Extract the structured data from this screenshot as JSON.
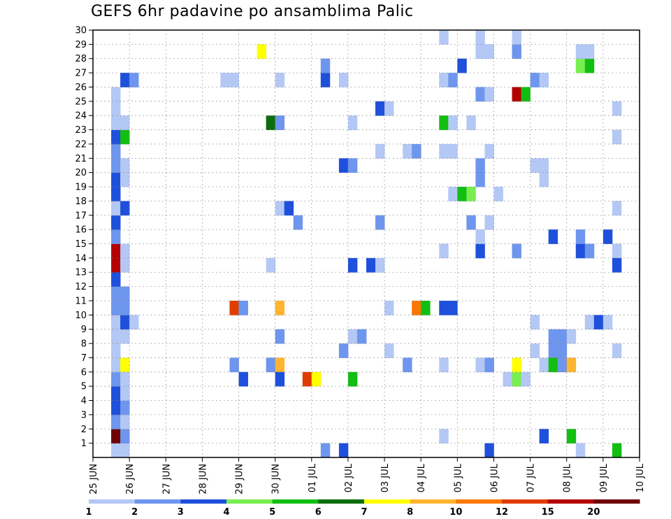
{
  "chart_data": {
    "type": "heatmap",
    "title": "GEFS 6hr padavine po ansamblima Palic",
    "xlabel": "",
    "ylabel": "",
    "x_ticks": [
      "25 JUN",
      "26 JUN",
      "27 JUN",
      "28 JUN",
      "29 JUN",
      "30 JUN",
      "01 JUL",
      "02 JUL",
      "03 JUL",
      "04 JUL",
      "05 JUL",
      "06 JUL",
      "07 JUL",
      "08 JUL",
      "09 JUL",
      "10 JUL"
    ],
    "xlim": [
      0,
      60
    ],
    "x_units": "6-hour steps from 25 JUN 00Z",
    "y_ticks": [
      "1",
      "2",
      "3",
      "4",
      "5",
      "6",
      "7",
      "8",
      "9",
      "10",
      "11",
      "12",
      "13",
      "14",
      "15",
      "16",
      "17",
      "18",
      "19",
      "20",
      "21",
      "22",
      "23",
      "24",
      "25",
      "26",
      "27",
      "28",
      "29",
      "30"
    ],
    "ylim": [
      0,
      30
    ],
    "grid": true,
    "colorbar": {
      "levels": [
        1,
        2,
        3,
        4,
        5,
        6,
        7,
        8,
        10,
        12,
        15,
        20
      ],
      "labels": [
        "1",
        "2",
        "3",
        "4",
        "5",
        "6",
        "7",
        "8",
        "10",
        "12",
        "15",
        "20"
      ],
      "colors": [
        "#b4c8f5",
        "#6e96ee",
        "#1e50dc",
        "#78ee50",
        "#12be12",
        "#0c6e0c",
        "#ffff00",
        "#ffb432",
        "#fa7800",
        "#e03c00",
        "#b40000",
        "#6e0000"
      ]
    },
    "cells": [
      [
        2,
        0,
        0
      ],
      [
        3,
        0,
        0
      ],
      [
        2,
        1,
        11
      ],
      [
        2,
        2,
        1
      ],
      [
        2,
        3,
        2
      ],
      [
        2,
        4,
        2
      ],
      [
        2,
        5,
        1
      ],
      [
        3,
        5,
        1
      ],
      [
        2,
        6,
        0
      ],
      [
        3,
        6,
        6
      ],
      [
        2,
        7,
        0
      ],
      [
        2,
        8,
        0
      ],
      [
        2,
        9,
        0
      ],
      [
        2,
        10,
        1
      ],
      [
        2,
        11,
        1
      ],
      [
        2,
        12,
        2
      ],
      [
        2,
        13,
        10
      ],
      [
        3,
        13,
        0
      ],
      [
        2,
        14,
        10
      ],
      [
        2,
        15,
        1
      ],
      [
        2,
        16,
        2
      ],
      [
        2,
        17,
        0
      ],
      [
        2,
        18,
        2
      ],
      [
        2,
        19,
        2
      ],
      [
        2,
        20,
        1
      ],
      [
        2,
        21,
        1
      ],
      [
        2,
        22,
        2
      ],
      [
        2,
        23,
        0
      ],
      [
        2,
        24,
        0
      ],
      [
        2,
        25,
        0
      ],
      [
        3,
        1,
        1
      ],
      [
        3,
        2,
        0
      ],
      [
        3,
        3,
        1
      ],
      [
        3,
        4,
        0
      ],
      [
        3,
        5,
        0
      ],
      [
        3,
        8,
        0
      ],
      [
        3,
        9,
        2
      ],
      [
        3,
        10,
        1
      ],
      [
        3,
        11,
        1
      ],
      [
        3,
        14,
        0
      ],
      [
        3,
        17,
        2
      ],
      [
        3,
        19,
        0
      ],
      [
        3,
        20,
        0
      ],
      [
        3,
        22,
        4
      ],
      [
        3,
        23,
        0
      ],
      [
        3,
        26,
        2
      ],
      [
        4,
        9,
        0
      ],
      [
        4,
        26,
        1
      ],
      [
        14,
        26,
        0
      ],
      [
        15,
        26,
        0
      ],
      [
        15,
        6,
        1
      ],
      [
        15,
        10,
        9
      ],
      [
        16,
        10,
        1
      ],
      [
        16,
        5,
        2
      ],
      [
        18,
        28,
        6
      ],
      [
        19,
        6,
        1
      ],
      [
        19,
        13,
        0
      ],
      [
        19,
        23,
        5
      ],
      [
        20,
        23,
        1
      ],
      [
        20,
        26,
        0
      ],
      [
        20,
        17,
        0
      ],
      [
        21,
        17,
        2
      ],
      [
        20,
        10,
        7
      ],
      [
        20,
        8,
        1
      ],
      [
        20,
        6,
        7
      ],
      [
        20,
        5,
        2
      ],
      [
        22,
        16,
        1
      ],
      [
        23,
        5,
        9
      ],
      [
        24,
        5,
        6
      ],
      [
        25,
        26,
        2
      ],
      [
        25,
        27,
        1
      ],
      [
        25,
        0,
        1
      ],
      [
        27,
        26,
        0
      ],
      [
        27,
        20,
        2
      ],
      [
        28,
        20,
        1
      ],
      [
        27,
        7,
        1
      ],
      [
        27,
        0,
        2
      ],
      [
        28,
        5,
        4
      ],
      [
        28,
        23,
        0
      ],
      [
        28,
        13,
        2
      ],
      [
        28,
        8,
        0
      ],
      [
        29,
        8,
        1
      ],
      [
        30,
        13,
        2
      ],
      [
        31,
        13,
        0
      ],
      [
        31,
        24,
        2
      ],
      [
        32,
        24,
        0
      ],
      [
        31,
        21,
        0
      ],
      [
        31,
        16,
        1
      ],
      [
        32,
        10,
        0
      ],
      [
        32,
        7,
        0
      ],
      [
        34,
        21,
        0
      ],
      [
        35,
        21,
        1
      ],
      [
        34,
        6,
        1
      ],
      [
        35,
        10,
        8
      ],
      [
        36,
        10,
        4
      ],
      [
        38,
        26,
        0
      ],
      [
        39,
        26,
        1
      ],
      [
        38,
        23,
        4
      ],
      [
        39,
        23,
        0
      ],
      [
        38,
        21,
        0
      ],
      [
        39,
        21,
        0
      ],
      [
        39,
        18,
        0
      ],
      [
        38,
        14,
        0
      ],
      [
        38,
        10,
        2
      ],
      [
        39,
        10,
        2
      ],
      [
        38,
        6,
        0
      ],
      [
        38,
        1,
        0
      ],
      [
        38,
        29,
        0
      ],
      [
        40,
        27,
        2
      ],
      [
        40,
        18,
        4
      ],
      [
        41,
        23,
        0
      ],
      [
        41,
        16,
        1
      ],
      [
        41,
        18,
        3
      ],
      [
        42,
        28,
        0
      ],
      [
        42,
        25,
        1
      ],
      [
        42,
        20,
        1
      ],
      [
        42,
        19,
        1
      ],
      [
        42,
        14,
        2
      ],
      [
        42,
        6,
        0
      ],
      [
        42,
        15,
        0
      ],
      [
        42,
        29,
        0
      ],
      [
        43,
        28,
        0
      ],
      [
        43,
        25,
        0
      ],
      [
        43,
        21,
        0
      ],
      [
        43,
        16,
        0
      ],
      [
        43,
        6,
        1
      ],
      [
        43,
        0,
        2
      ],
      [
        44,
        18,
        0
      ],
      [
        45,
        5,
        0
      ],
      [
        46,
        5,
        3
      ],
      [
        46,
        6,
        6
      ],
      [
        47,
        5,
        0
      ],
      [
        46,
        25,
        10
      ],
      [
        47,
        25,
        4
      ],
      [
        46,
        28,
        1
      ],
      [
        46,
        14,
        1
      ],
      [
        46,
        29,
        0
      ],
      [
        48,
        26,
        1
      ],
      [
        49,
        26,
        0
      ],
      [
        48,
        20,
        0
      ],
      [
        49,
        20,
        0
      ],
      [
        49,
        19,
        0
      ],
      [
        48,
        7,
        0
      ],
      [
        48,
        9,
        0
      ],
      [
        49,
        6,
        0
      ],
      [
        49,
        1,
        2
      ],
      [
        50,
        15,
        2
      ],
      [
        50,
        7,
        1
      ],
      [
        51,
        7,
        1
      ],
      [
        50,
        8,
        1
      ],
      [
        51,
        8,
        1
      ],
      [
        50,
        6,
        4
      ],
      [
        51,
        6,
        1
      ],
      [
        52,
        6,
        7
      ],
      [
        52,
        8,
        0
      ],
      [
        52,
        1,
        4
      ],
      [
        53,
        27,
        3
      ],
      [
        54,
        27,
        4
      ],
      [
        53,
        28,
        0
      ],
      [
        54,
        28,
        0
      ],
      [
        53,
        14,
        2
      ],
      [
        54,
        14,
        1
      ],
      [
        53,
        15,
        1
      ],
      [
        53,
        0,
        0
      ],
      [
        54,
        9,
        0
      ],
      [
        55,
        9,
        2
      ],
      [
        56,
        9,
        0
      ],
      [
        56,
        15,
        2
      ],
      [
        57,
        24,
        0
      ],
      [
        57,
        22,
        0
      ],
      [
        57,
        17,
        0
      ],
      [
        57,
        14,
        0
      ],
      [
        57,
        13,
        2
      ],
      [
        57,
        7,
        0
      ],
      [
        57,
        0,
        4
      ]
    ]
  }
}
